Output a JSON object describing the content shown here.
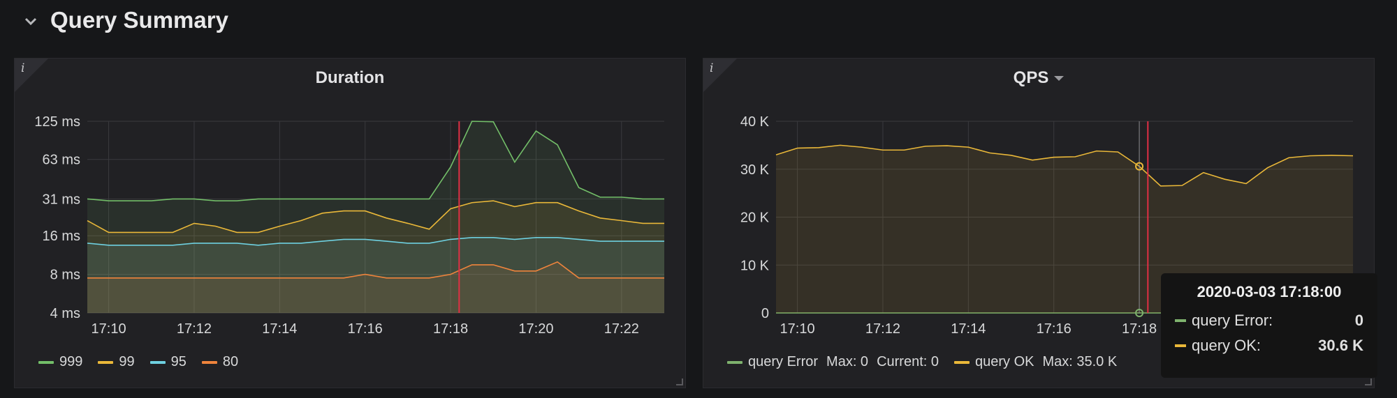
{
  "row": {
    "title": "Query Summary"
  },
  "colors": {
    "s999": "#73bf69",
    "s99": "#eab839",
    "s95": "#6ed0e0",
    "s80": "#ef843c",
    "queryError": "#7eb26d",
    "queryOK": "#eab839",
    "cursor": "#e02f44"
  },
  "icons": {
    "row_toggle": "chevron-down-icon",
    "panel_info": "info-icon",
    "title_menu": "caret-down-icon"
  },
  "panels": [
    {
      "title": "Duration",
      "info_glyph": "i",
      "legend": [
        {
          "name": "999",
          "color": "#73bf69"
        },
        {
          "name": "99",
          "color": "#eab839"
        },
        {
          "name": "95",
          "color": "#6ed0e0"
        },
        {
          "name": "80",
          "color": "#ef843c"
        }
      ]
    },
    {
      "title": "QPS",
      "info_glyph": "i",
      "legend": [
        {
          "name": "query Error",
          "color": "#7eb26d",
          "max": "Max: 0",
          "current": "Current: 0"
        },
        {
          "name": "query OK",
          "color": "#eab839",
          "max": "Max: 35.0 K"
        }
      ],
      "tooltip": {
        "time": "2020-03-03 17:18:00",
        "rows": [
          {
            "label": "query Error:",
            "value": "0",
            "color": "#7eb26d"
          },
          {
            "label": "query OK:",
            "value": "30.6 K",
            "color": "#eab839"
          }
        ]
      }
    }
  ],
  "chart_data": [
    {
      "type": "area",
      "title": "Duration",
      "y_scale": "log2",
      "ylim": [
        4,
        125
      ],
      "y_ticks": [
        "4 ms",
        "8 ms",
        "16 ms",
        "31 ms",
        "63 ms",
        "125 ms"
      ],
      "x_ticks": [
        "17:10",
        "17:12",
        "17:14",
        "17:16",
        "17:18",
        "17:20",
        "17:22"
      ],
      "x": [
        "17:09:30",
        "17:10:00",
        "17:10:30",
        "17:11:00",
        "17:11:30",
        "17:12:00",
        "17:12:30",
        "17:13:00",
        "17:13:30",
        "17:14:00",
        "17:14:30",
        "17:15:00",
        "17:15:30",
        "17:16:00",
        "17:16:30",
        "17:17:00",
        "17:17:30",
        "17:18:00",
        "17:18:30",
        "17:19:00",
        "17:19:30",
        "17:20:00",
        "17:20:30",
        "17:21:00",
        "17:21:30",
        "17:22:00",
        "17:22:30",
        "17:23:00"
      ],
      "cursor_x": "17:18:12",
      "series": [
        {
          "name": "999",
          "values": [
            31,
            30,
            30,
            30,
            31,
            31,
            30,
            30,
            31,
            31,
            31,
            31,
            31,
            31,
            31,
            31,
            31,
            55,
            125,
            124,
            60,
            105,
            82,
            38,
            32,
            32,
            31,
            31
          ]
        },
        {
          "name": "99",
          "values": [
            21,
            17,
            17,
            17,
            17,
            20,
            19,
            17,
            17,
            19,
            21,
            24,
            25,
            25,
            22,
            20,
            18,
            26,
            29,
            30,
            27,
            29,
            29,
            25,
            22,
            21,
            20,
            20
          ]
        },
        {
          "name": "95",
          "values": [
            14,
            13.5,
            13.5,
            13.5,
            13.5,
            14,
            14,
            14,
            13.5,
            14,
            14,
            14.5,
            15,
            15,
            14.5,
            14,
            14,
            15,
            15.5,
            15.5,
            15,
            15.5,
            15.5,
            15,
            14.5,
            14.5,
            14.5,
            14.5
          ]
        },
        {
          "name": "80",
          "values": [
            7.5,
            7.5,
            7.5,
            7.5,
            7.5,
            7.5,
            7.5,
            7.5,
            7.5,
            7.5,
            7.5,
            7.5,
            7.5,
            8,
            7.5,
            7.5,
            7.5,
            8,
            9.5,
            9.5,
            8.5,
            8.5,
            10,
            7.5,
            7.5,
            7.5,
            7.5,
            7.5
          ]
        }
      ]
    },
    {
      "type": "area",
      "title": "QPS",
      "ylim": [
        0,
        40000
      ],
      "y_ticks": [
        "0",
        "10 K",
        "20 K",
        "30 K",
        "40 K"
      ],
      "x_ticks": [
        "17:10",
        "17:12",
        "17:14",
        "17:16",
        "17:18"
      ],
      "x": [
        "17:09:30",
        "17:10:00",
        "17:10:30",
        "17:11:00",
        "17:11:30",
        "17:12:00",
        "17:12:30",
        "17:13:00",
        "17:13:30",
        "17:14:00",
        "17:14:30",
        "17:15:00",
        "17:15:30",
        "17:16:00",
        "17:16:30",
        "17:17:00",
        "17:17:30",
        "17:18:00",
        "17:18:30",
        "17:19:00",
        "17:19:30",
        "17:20:00",
        "17:20:30",
        "17:21:00",
        "17:21:30",
        "17:22:00",
        "17:22:30",
        "17:23:00"
      ],
      "cursor_x": "17:18:12",
      "hover_x": "17:18:00",
      "series": [
        {
          "name": "query Error",
          "values": [
            0,
            0,
            0,
            0,
            0,
            0,
            0,
            0,
            0,
            0,
            0,
            0,
            0,
            0,
            0,
            0,
            0,
            0,
            0,
            0,
            0,
            0,
            0,
            0,
            0,
            0,
            0,
            0
          ]
        },
        {
          "name": "query OK",
          "values": [
            33000,
            34400,
            34500,
            35000,
            34600,
            34000,
            34000,
            34800,
            34900,
            34600,
            33400,
            32900,
            31900,
            32500,
            32600,
            33800,
            33600,
            30600,
            26500,
            26600,
            29300,
            27900,
            27000,
            30300,
            32400,
            32800,
            32900,
            32800
          ]
        }
      ]
    }
  ]
}
